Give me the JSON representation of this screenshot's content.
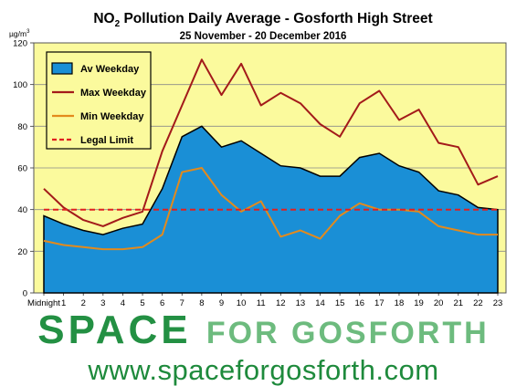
{
  "chart_data": {
    "type": "area",
    "title_main": "NO",
    "title_sub": "2",
    "title_rest": " Pollution Daily Average - Gosforth High Street",
    "subtitle": "25 November - 20 December 2016",
    "ylabel_base": "µg/m",
    "ylabel_sup": "3",
    "ylim": [
      0,
      120
    ],
    "yticks": [
      "0",
      "20",
      "40",
      "60",
      "80",
      "100",
      "120"
    ],
    "categories": [
      "Midnight",
      "1",
      "2",
      "3",
      "4",
      "5",
      "6",
      "7",
      "8",
      "9",
      "10",
      "11",
      "12",
      "13",
      "14",
      "15",
      "16",
      "17",
      "18",
      "19",
      "20",
      "21",
      "22",
      "23"
    ],
    "grid": true,
    "legend_position": "top-left",
    "series": [
      {
        "name": "Av Weekday",
        "kind": "area",
        "color": "#1a8fd6",
        "values": [
          37,
          33,
          30,
          28,
          31,
          33,
          50,
          75,
          80,
          70,
          73,
          67,
          61,
          60,
          56,
          56,
          65,
          67,
          61,
          58,
          49,
          47,
          41,
          40
        ]
      },
      {
        "name": "Max Weekday",
        "kind": "line",
        "color": "#a31a1a",
        "values": [
          50,
          41,
          35,
          32,
          36,
          39,
          68,
          90,
          112,
          95,
          110,
          90,
          96,
          91,
          81,
          75,
          91,
          97,
          83,
          88,
          72,
          70,
          52,
          56
        ]
      },
      {
        "name": "Min Weekday",
        "kind": "line",
        "color": "#e38a1c",
        "values": [
          25,
          23,
          22,
          21,
          21,
          22,
          28,
          58,
          60,
          47,
          39,
          44,
          27,
          30,
          26,
          37,
          43,
          40,
          40,
          39,
          32,
          30,
          28,
          28
        ]
      },
      {
        "name": "Legal Limit",
        "kind": "dashed",
        "color": "#e02020",
        "values": [
          40,
          40,
          40,
          40,
          40,
          40,
          40,
          40,
          40,
          40,
          40,
          40,
          40,
          40,
          40,
          40,
          40,
          40,
          40,
          40,
          40,
          40,
          40,
          40
        ]
      }
    ]
  },
  "brand": {
    "word1": "SPACE",
    "word2": "FOR GOSFORTH",
    "url": "www.spaceforgosforth.com"
  },
  "colors": {
    "plot_bg": "#fbfa9d",
    "brand_green": "#2f9a4a"
  }
}
